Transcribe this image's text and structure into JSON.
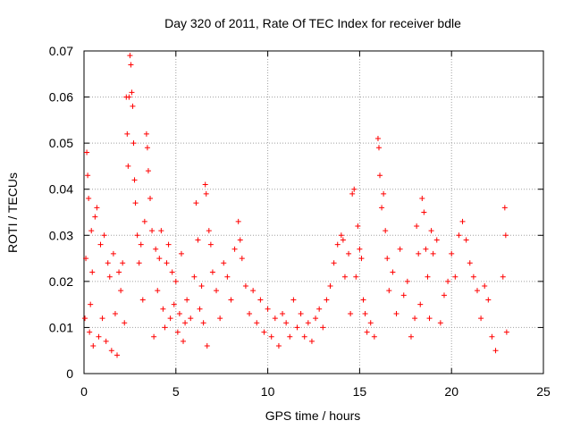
{
  "chart_data": {
    "type": "scatter",
    "title": "Day 320 of 2011, Rate Of TEC Index for receiver bdle",
    "xlabel": "GPS time / hours",
    "ylabel": "ROTI / TECUs",
    "xlim": [
      0,
      25
    ],
    "ylim": [
      0,
      0.07
    ],
    "x_ticks": [
      "0",
      "5",
      "10",
      "15",
      "20",
      "25"
    ],
    "y_ticks": [
      "0",
      "0.01",
      "0.02",
      "0.03",
      "0.04",
      "0.05",
      "0.06",
      "0.07"
    ],
    "x_tick_values": [
      0,
      5,
      10,
      15,
      20,
      25
    ],
    "y_tick_values": [
      0,
      0.01,
      0.02,
      0.03,
      0.04,
      0.05,
      0.06,
      0.07
    ],
    "grid": true,
    "marker": "plus",
    "series": [
      {
        "color": "#ff0000",
        "points": [
          [
            0.05,
            0.012
          ],
          [
            0.1,
            0.025
          ],
          [
            0.15,
            0.048
          ],
          [
            0.2,
            0.043
          ],
          [
            0.25,
            0.038
          ],
          [
            0.3,
            0.009
          ],
          [
            0.35,
            0.015
          ],
          [
            0.4,
            0.031
          ],
          [
            0.45,
            0.022
          ],
          [
            0.5,
            0.006
          ],
          [
            0.6,
            0.034
          ],
          [
            0.7,
            0.036
          ],
          [
            0.8,
            0.008
          ],
          [
            0.9,
            0.028
          ],
          [
            1.0,
            0.012
          ],
          [
            1.1,
            0.03
          ],
          [
            1.2,
            0.007
          ],
          [
            1.3,
            0.024
          ],
          [
            1.4,
            0.021
          ],
          [
            1.5,
            0.005
          ],
          [
            1.6,
            0.026
          ],
          [
            1.7,
            0.013
          ],
          [
            1.8,
            0.004
          ],
          [
            1.9,
            0.022
          ],
          [
            2.0,
            0.018
          ],
          [
            2.1,
            0.024
          ],
          [
            2.2,
            0.011
          ],
          [
            2.3,
            0.06
          ],
          [
            2.35,
            0.052
          ],
          [
            2.4,
            0.045
          ],
          [
            2.45,
            0.06
          ],
          [
            2.5,
            0.069
          ],
          [
            2.55,
            0.067
          ],
          [
            2.6,
            0.061
          ],
          [
            2.65,
            0.058
          ],
          [
            2.7,
            0.05
          ],
          [
            2.75,
            0.042
          ],
          [
            2.8,
            0.037
          ],
          [
            2.9,
            0.03
          ],
          [
            3.0,
            0.024
          ],
          [
            3.1,
            0.028
          ],
          [
            3.2,
            0.016
          ],
          [
            3.3,
            0.033
          ],
          [
            3.4,
            0.052
          ],
          [
            3.45,
            0.049
          ],
          [
            3.5,
            0.044
          ],
          [
            3.6,
            0.038
          ],
          [
            3.7,
            0.031
          ],
          [
            3.8,
            0.008
          ],
          [
            3.9,
            0.027
          ],
          [
            4.0,
            0.018
          ],
          [
            4.1,
            0.025
          ],
          [
            4.2,
            0.031
          ],
          [
            4.3,
            0.014
          ],
          [
            4.4,
            0.01
          ],
          [
            4.5,
            0.024
          ],
          [
            4.6,
            0.028
          ],
          [
            4.7,
            0.012
          ],
          [
            4.8,
            0.022
          ],
          [
            4.9,
            0.015
          ],
          [
            5.0,
            0.02
          ],
          [
            5.1,
            0.009
          ],
          [
            5.2,
            0.013
          ],
          [
            5.3,
            0.026
          ],
          [
            5.4,
            0.007
          ],
          [
            5.5,
            0.011
          ],
          [
            5.6,
            0.016
          ],
          [
            5.8,
            0.012
          ],
          [
            6.0,
            0.021
          ],
          [
            6.1,
            0.037
          ],
          [
            6.2,
            0.029
          ],
          [
            6.3,
            0.014
          ],
          [
            6.4,
            0.019
          ],
          [
            6.5,
            0.011
          ],
          [
            6.6,
            0.041
          ],
          [
            6.65,
            0.039
          ],
          [
            6.7,
            0.006
          ],
          [
            6.8,
            0.031
          ],
          [
            6.9,
            0.028
          ],
          [
            7.0,
            0.022
          ],
          [
            7.2,
            0.018
          ],
          [
            7.4,
            0.012
          ],
          [
            7.6,
            0.024
          ],
          [
            7.8,
            0.021
          ],
          [
            8.0,
            0.016
          ],
          [
            8.2,
            0.027
          ],
          [
            8.4,
            0.033
          ],
          [
            8.5,
            0.029
          ],
          [
            8.6,
            0.025
          ],
          [
            8.8,
            0.019
          ],
          [
            9.0,
            0.013
          ],
          [
            9.2,
            0.018
          ],
          [
            9.4,
            0.011
          ],
          [
            9.6,
            0.016
          ],
          [
            9.8,
            0.009
          ],
          [
            10.0,
            0.014
          ],
          [
            10.2,
            0.008
          ],
          [
            10.4,
            0.012
          ],
          [
            10.6,
            0.006
          ],
          [
            10.8,
            0.013
          ],
          [
            11.0,
            0.011
          ],
          [
            11.2,
            0.008
          ],
          [
            11.4,
            0.016
          ],
          [
            11.6,
            0.01
          ],
          [
            11.8,
            0.013
          ],
          [
            12.0,
            0.008
          ],
          [
            12.2,
            0.011
          ],
          [
            12.4,
            0.007
          ],
          [
            12.6,
            0.012
          ],
          [
            12.8,
            0.014
          ],
          [
            13.0,
            0.01
          ],
          [
            13.2,
            0.016
          ],
          [
            13.4,
            0.019
          ],
          [
            13.6,
            0.024
          ],
          [
            13.8,
            0.028
          ],
          [
            14.0,
            0.03
          ],
          [
            14.1,
            0.029
          ],
          [
            14.2,
            0.021
          ],
          [
            14.4,
            0.026
          ],
          [
            14.5,
            0.013
          ],
          [
            14.6,
            0.039
          ],
          [
            14.7,
            0.04
          ],
          [
            14.8,
            0.021
          ],
          [
            14.9,
            0.032
          ],
          [
            15.0,
            0.027
          ],
          [
            15.1,
            0.025
          ],
          [
            15.2,
            0.016
          ],
          [
            15.3,
            0.013
          ],
          [
            15.4,
            0.009
          ],
          [
            15.6,
            0.011
          ],
          [
            15.8,
            0.008
          ],
          [
            16.0,
            0.051
          ],
          [
            16.05,
            0.049
          ],
          [
            16.1,
            0.043
          ],
          [
            16.2,
            0.036
          ],
          [
            16.3,
            0.039
          ],
          [
            16.4,
            0.031
          ],
          [
            16.5,
            0.025
          ],
          [
            16.6,
            0.018
          ],
          [
            16.8,
            0.022
          ],
          [
            17.0,
            0.013
          ],
          [
            17.2,
            0.027
          ],
          [
            17.4,
            0.017
          ],
          [
            17.6,
            0.02
          ],
          [
            17.8,
            0.008
          ],
          [
            18.0,
            0.012
          ],
          [
            18.1,
            0.032
          ],
          [
            18.2,
            0.026
          ],
          [
            18.3,
            0.015
          ],
          [
            18.4,
            0.038
          ],
          [
            18.5,
            0.035
          ],
          [
            18.6,
            0.027
          ],
          [
            18.7,
            0.021
          ],
          [
            18.8,
            0.012
          ],
          [
            18.9,
            0.031
          ],
          [
            19.0,
            0.026
          ],
          [
            19.2,
            0.029
          ],
          [
            19.4,
            0.011
          ],
          [
            19.6,
            0.017
          ],
          [
            19.8,
            0.02
          ],
          [
            20.0,
            0.026
          ],
          [
            20.2,
            0.021
          ],
          [
            20.4,
            0.03
          ],
          [
            20.6,
            0.033
          ],
          [
            20.8,
            0.029
          ],
          [
            21.0,
            0.024
          ],
          [
            21.2,
            0.021
          ],
          [
            21.4,
            0.018
          ],
          [
            21.6,
            0.012
          ],
          [
            21.8,
            0.019
          ],
          [
            22.0,
            0.016
          ],
          [
            22.2,
            0.008
          ],
          [
            22.4,
            0.005
          ],
          [
            22.8,
            0.021
          ],
          [
            22.9,
            0.036
          ],
          [
            22.95,
            0.03
          ],
          [
            23.0,
            0.009
          ]
        ]
      }
    ]
  }
}
